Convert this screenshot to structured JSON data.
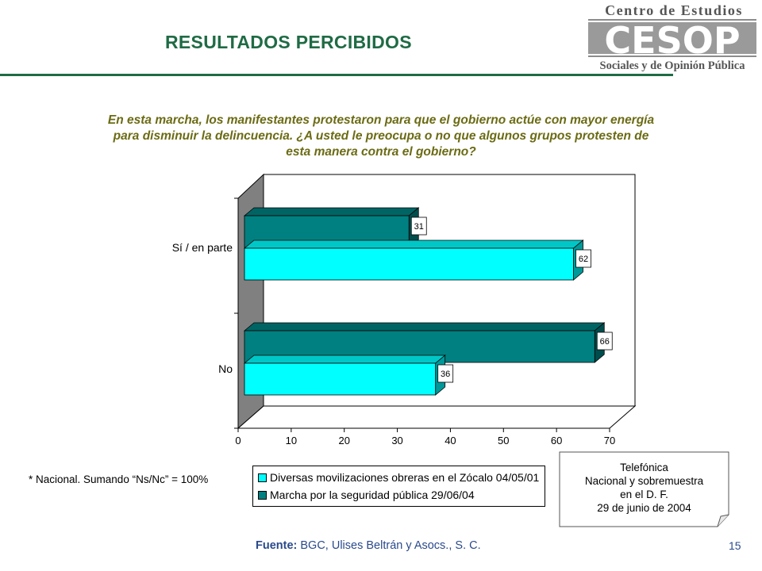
{
  "header": {
    "title": "RESULTADOS PERCIBIDOS",
    "logo": {
      "line1": "Centro de Estudios",
      "acronym": "CESOP",
      "line2": "Sociales y de Opinión Pública"
    }
  },
  "question": {
    "line1": "En esta marcha, los manifestantes  protestaron para que el gobierno actúe con mayor energía",
    "line2": "para disminuir la delincuencia. ¿A usted le preocupa o no que algunos grupos protesten de",
    "line3": "esta manera contra el gobierno?"
  },
  "chart_data": {
    "type": "bar",
    "orientation": "horizontal",
    "categories": [
      "Sí / en parte",
      "No"
    ],
    "series": [
      {
        "name": "Diversas movilizaciones obreras en el Zócalo 04/05/01",
        "values": [
          62,
          36
        ],
        "color": "#00ffff"
      },
      {
        "name": "Marcha por la seguridad pública 29/06/04",
        "values": [
          31,
          66
        ],
        "color": "#008080"
      }
    ],
    "xlim": [
      0,
      70
    ],
    "xticks": [
      0,
      10,
      20,
      30,
      40,
      50,
      60,
      70
    ],
    "legend": "bottom",
    "grid": false,
    "style": "3d"
  },
  "note": "* Nacional. Sumando “Ns/Nc” = 100%",
  "callout": {
    "line1": "Telefónica",
    "line2": "Nacional y sobremuestra",
    "line3": "en el D. F.",
    "line4": "29 de junio de 2004"
  },
  "footer": {
    "source_label": "Fuente:",
    "source_text": " BGC, Ulises Beltrán y Asocs., S. C.",
    "page_number": "15"
  },
  "colors": {
    "title": "#1f6b45",
    "question": "#6b6b14",
    "footer": "#2a4a8c"
  }
}
